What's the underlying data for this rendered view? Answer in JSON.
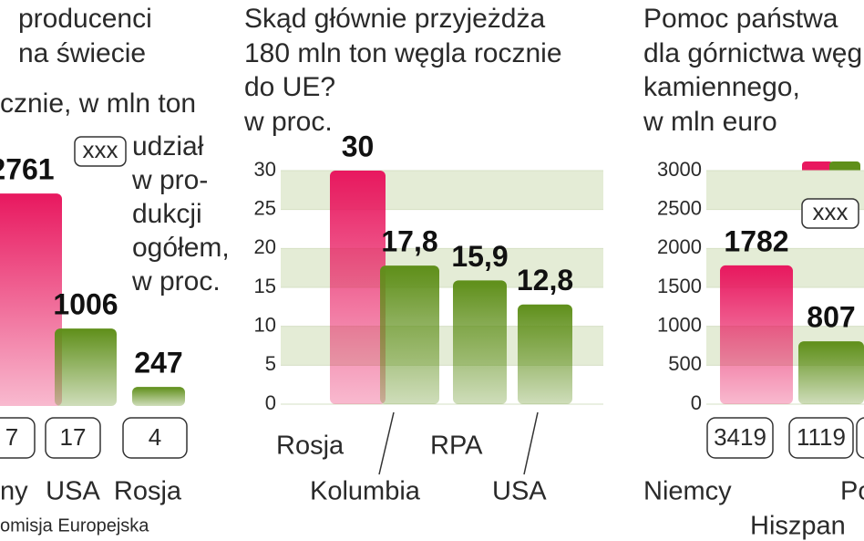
{
  "chart_data": [
    {
      "type": "bar",
      "title_lines": [
        "producenci",
        "na świecie",
        "cznie, w mln ton"
      ],
      "categories": [
        "ny",
        "USA",
        "Rosja"
      ],
      "values": [
        2761,
        1006,
        247
      ],
      "colors": [
        "#e8185f",
        "#5f8f1a",
        "#5f8f1a"
      ],
      "ylim": [
        0,
        3000
      ],
      "shares": [
        7,
        17,
        4
      ],
      "legend_label": "xxx",
      "note_lines": [
        "udział",
        "w pro-",
        "dukcji",
        "ogółem,",
        "w proc."
      ],
      "source": "omisja Europejska"
    },
    {
      "type": "bar",
      "title_lines": [
        "Skąd głównie przyjeżdża",
        "180 mln ton węgla rocznie",
        "do UE?",
        "w proc."
      ],
      "categories": [
        "Rosja",
        "Kolumbia",
        "RPA",
        "USA"
      ],
      "values": [
        30,
        17.8,
        15.9,
        12.8
      ],
      "value_labels": [
        "30",
        "17,8",
        "15,9",
        "12,8"
      ],
      "colors": [
        "#e8185f",
        "#5f8f1a",
        "#5f8f1a",
        "#5f8f1a"
      ],
      "ylim": [
        0,
        30
      ],
      "yticks": [
        0,
        5,
        10,
        15,
        20,
        25,
        30
      ]
    },
    {
      "type": "bar",
      "title_lines": [
        "Pomoc państwa",
        "dla górnictwa węg",
        "kamiennego,",
        "w mln euro"
      ],
      "categories": [
        "Niemcy",
        "Hiszpan",
        "Po"
      ],
      "values": [
        1782,
        807,
        null
      ],
      "colors": [
        "#e8185f",
        "#5f8f1a",
        "#5f8f1a"
      ],
      "ylim": [
        0,
        3000
      ],
      "yticks": [
        0,
        500,
        1000,
        1500,
        2000,
        2500,
        3000
      ],
      "shares": [
        3419,
        1119,
        null
      ],
      "legend_label": "xxx"
    }
  ]
}
